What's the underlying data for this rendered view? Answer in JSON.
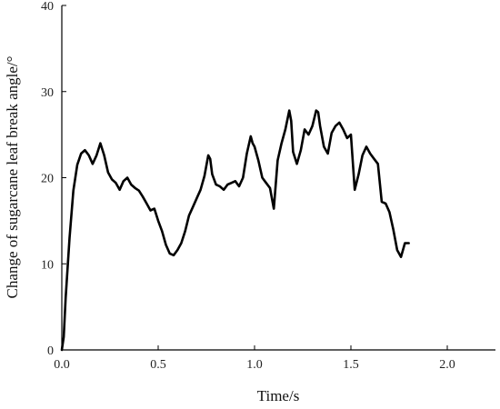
{
  "chart_data": {
    "type": "line",
    "title": "",
    "xlabel": "Time/s",
    "ylabel": "Change of sugarcane leaf break angle/°",
    "xlim": [
      0.0,
      2.25
    ],
    "ylim": [
      0,
      40
    ],
    "x_ticks": [
      0.0,
      0.5,
      1.0,
      1.5,
      2.0
    ],
    "x_tick_labels": [
      "0.0",
      "0.5",
      "1.0",
      "1.5",
      "2.0"
    ],
    "y_ticks": [
      0,
      10,
      20,
      30,
      40
    ],
    "y_tick_labels": [
      "0",
      "10",
      "20",
      "30",
      "40"
    ],
    "grid": false,
    "legend": "none",
    "series": [
      {
        "color": "#000000",
        "x": [
          0.0,
          0.01,
          0.02,
          0.04,
          0.06,
          0.08,
          0.1,
          0.12,
          0.14,
          0.16,
          0.18,
          0.2,
          0.22,
          0.24,
          0.26,
          0.28,
          0.3,
          0.32,
          0.34,
          0.36,
          0.38,
          0.4,
          0.42,
          0.44,
          0.46,
          0.48,
          0.5,
          0.52,
          0.54,
          0.56,
          0.58,
          0.6,
          0.62,
          0.64,
          0.66,
          0.68,
          0.7,
          0.72,
          0.74,
          0.76,
          0.77,
          0.78,
          0.8,
          0.82,
          0.84,
          0.86,
          0.88,
          0.9,
          0.92,
          0.94,
          0.96,
          0.98,
          0.99,
          1.0,
          1.02,
          1.04,
          1.06,
          1.08,
          1.1,
          1.12,
          1.14,
          1.16,
          1.18,
          1.19,
          1.2,
          1.22,
          1.24,
          1.26,
          1.28,
          1.3,
          1.32,
          1.33,
          1.34,
          1.36,
          1.38,
          1.4,
          1.42,
          1.44,
          1.46,
          1.48,
          1.5,
          1.52,
          1.54,
          1.56,
          1.58,
          1.6,
          1.62,
          1.64,
          1.66,
          1.68,
          1.7,
          1.72,
          1.74,
          1.76,
          1.78,
          1.8
        ],
        "values": [
          0.0,
          1.5,
          6.0,
          13.0,
          18.5,
          21.5,
          22.8,
          23.2,
          22.6,
          21.6,
          22.6,
          24.0,
          22.6,
          20.6,
          19.8,
          19.4,
          18.6,
          19.6,
          20.0,
          19.2,
          18.8,
          18.5,
          17.8,
          17.0,
          16.2,
          16.4,
          15.0,
          13.8,
          12.2,
          11.2,
          11.0,
          11.6,
          12.4,
          13.8,
          15.6,
          16.6,
          17.6,
          18.6,
          20.2,
          22.6,
          22.2,
          20.4,
          19.2,
          19.0,
          18.6,
          19.2,
          19.4,
          19.6,
          19.0,
          20.0,
          22.8,
          24.8,
          24.0,
          23.6,
          22.0,
          20.0,
          19.4,
          18.8,
          16.4,
          22.0,
          24.0,
          25.6,
          27.8,
          26.6,
          23.0,
          21.6,
          23.2,
          25.6,
          25.0,
          26.0,
          27.8,
          27.6,
          26.0,
          23.6,
          22.8,
          25.2,
          26.0,
          26.4,
          25.6,
          24.6,
          25.0,
          18.6,
          20.4,
          22.6,
          23.6,
          22.8,
          22.2,
          21.6,
          17.2,
          17.0,
          16.0,
          14.0,
          11.6,
          10.8,
          12.4,
          12.4
        ]
      }
    ]
  }
}
